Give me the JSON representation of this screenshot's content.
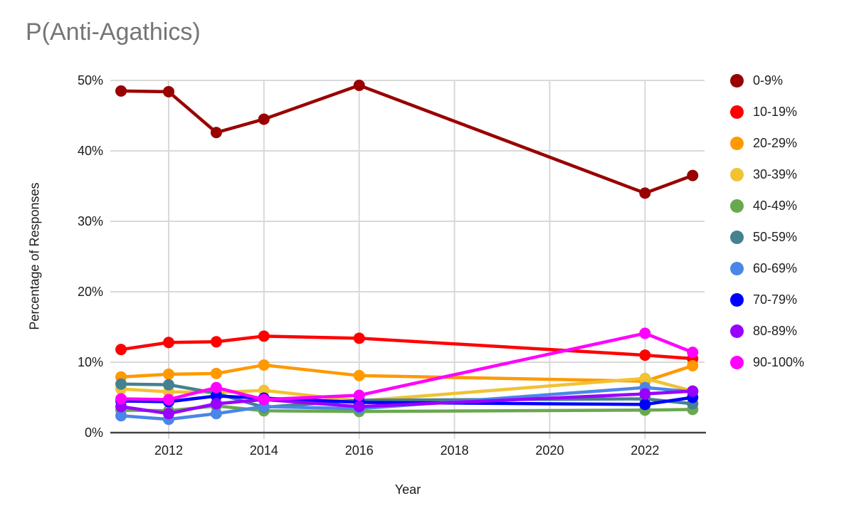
{
  "chart_data": {
    "type": "line",
    "title": "P(Anti-Agathics)",
    "xlabel": "Year",
    "ylabel": "Percentage of Responses",
    "x": [
      2011,
      2012,
      2013,
      2014,
      2016,
      2022,
      2023
    ],
    "xlim": [
      2010.79,
      2023.25
    ],
    "ylim": [
      0,
      50
    ],
    "grid": true,
    "legend_position": "right",
    "x_ticks": [
      {
        "value": 2012,
        "label": "2012"
      },
      {
        "value": 2014,
        "label": "2014"
      },
      {
        "value": 2016,
        "label": "2016"
      },
      {
        "value": 2018,
        "label": "2018"
      },
      {
        "value": 2020,
        "label": "2020"
      },
      {
        "value": 2022,
        "label": "2022"
      }
    ],
    "y_ticks": [
      {
        "value": 0,
        "label": "0%"
      },
      {
        "value": 10,
        "label": "10%"
      },
      {
        "value": 20,
        "label": "20%"
      },
      {
        "value": 30,
        "label": "30%"
      },
      {
        "value": 40,
        "label": "40%"
      },
      {
        "value": 50,
        "label": "50%"
      }
    ],
    "series": [
      {
        "name": "0-9%",
        "color": "#990000",
        "values": [
          48.5,
          48.4,
          42.6,
          44.5,
          49.3,
          34.0,
          36.5
        ]
      },
      {
        "name": "10-19%",
        "color": "#FF0000",
        "values": [
          11.8,
          12.8,
          12.9,
          13.7,
          13.4,
          11.0,
          10.5
        ]
      },
      {
        "name": "20-29%",
        "color": "#FF9900",
        "values": [
          7.9,
          8.3,
          8.4,
          9.6,
          8.1,
          7.3,
          9.5
        ]
      },
      {
        "name": "30-39%",
        "color": "#F1C232",
        "values": [
          6.2,
          5.8,
          5.7,
          6.0,
          4.5,
          7.7,
          5.9
        ]
      },
      {
        "name": "40-49%",
        "color": "#6AA84F",
        "values": [
          3.2,
          3.1,
          3.8,
          3.1,
          3.0,
          3.2,
          3.3
        ]
      },
      {
        "name": "50-59%",
        "color": "#45818E",
        "values": [
          6.9,
          6.8,
          5.6,
          3.6,
          4.6,
          4.8,
          4.1
        ]
      },
      {
        "name": "60-69%",
        "color": "#4A86E8",
        "values": [
          2.4,
          1.9,
          2.7,
          3.7,
          3.4,
          6.4,
          5.8
        ]
      },
      {
        "name": "70-79%",
        "color": "#0000FF",
        "values": [
          4.5,
          4.4,
          5.2,
          4.9,
          4.3,
          4.0,
          5.0
        ]
      },
      {
        "name": "80-89%",
        "color": "#9900FF",
        "values": [
          3.7,
          2.7,
          4.1,
          4.7,
          3.7,
          5.5,
          5.9
        ]
      },
      {
        "name": "90-100%",
        "color": "#FF00FF",
        "values": [
          4.8,
          4.7,
          6.4,
          4.7,
          5.3,
          14.1,
          11.4
        ]
      }
    ],
    "style": {
      "gridline_color": "#d9d9d9",
      "axis_color": "#424242",
      "title_color": "#757575"
    }
  }
}
